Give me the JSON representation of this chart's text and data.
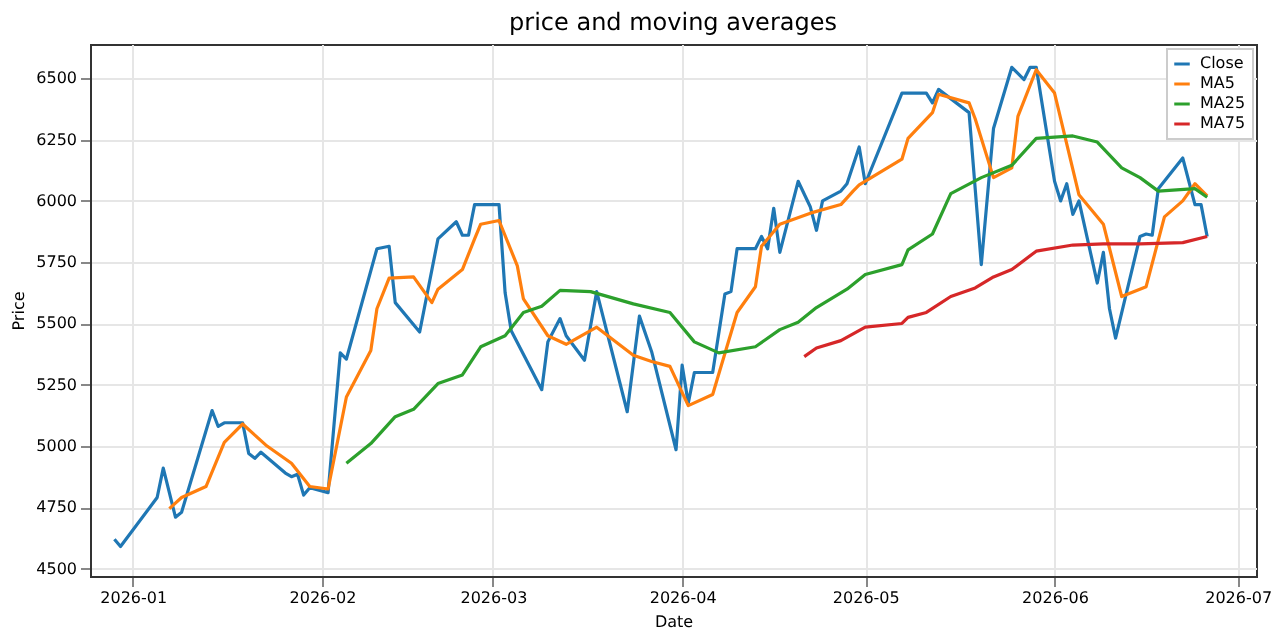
{
  "chart_data": {
    "type": "line",
    "title": "price and moving averages",
    "xlabel": "Date",
    "ylabel": "Price",
    "xlim": [
      "2025-12-25",
      "2026-07-04"
    ],
    "xticks": [
      "2026-01",
      "2026-02",
      "2026-03",
      "2026-04",
      "2026-05",
      "2026-06",
      "2026-07"
    ],
    "ylim": [
      4470,
      6640
    ],
    "yticks": [
      4500,
      4750,
      5000,
      5250,
      5500,
      5750,
      6000,
      6250,
      6500
    ],
    "grid": true,
    "legend": "top right",
    "line_style": "solid",
    "marker": "none",
    "series": [
      {
        "name": "Close",
        "color": "#1f77b4",
        "x": [
          "2025-12-29",
          "2025-12-30",
          "2026-01-05",
          "2026-01-06",
          "2026-01-08",
          "2026-01-09",
          "2026-01-14",
          "2026-01-15",
          "2026-01-16",
          "2026-01-19",
          "2026-01-20",
          "2026-01-21",
          "2026-01-22",
          "2026-01-26",
          "2026-01-27",
          "2026-01-28",
          "2026-01-29",
          "2026-01-30",
          "2026-02-02",
          "2026-02-04",
          "2026-02-05",
          "2026-02-10",
          "2026-02-12",
          "2026-02-13",
          "2026-02-17",
          "2026-02-20",
          "2026-02-23",
          "2026-02-24",
          "2026-02-25",
          "2026-02-26",
          "2026-02-27",
          "2026-03-02",
          "2026-03-03",
          "2026-03-04",
          "2026-03-09",
          "2026-03-10",
          "2026-03-12",
          "2026-03-13",
          "2026-03-16",
          "2026-03-18",
          "2026-03-23",
          "2026-03-25",
          "2026-03-27",
          "2026-03-31",
          "2026-04-01",
          "2026-04-02",
          "2026-04-03",
          "2026-04-06",
          "2026-04-08",
          "2026-04-09",
          "2026-04-10",
          "2026-04-13",
          "2026-04-14",
          "2026-04-15",
          "2026-04-16",
          "2026-04-17",
          "2026-04-20",
          "2026-04-22",
          "2026-04-23",
          "2026-04-24",
          "2026-04-27",
          "2026-04-28",
          "2026-04-30",
          "2026-05-01",
          "2026-05-07",
          "2026-05-11",
          "2026-05-12",
          "2026-05-13",
          "2026-05-18",
          "2026-05-20",
          "2026-05-22",
          "2026-05-25",
          "2026-05-27",
          "2026-05-28",
          "2026-05-29",
          "2026-06-01",
          "2026-06-02",
          "2026-06-03",
          "2026-06-04",
          "2026-06-05",
          "2026-06-08",
          "2026-06-09",
          "2026-06-10",
          "2026-06-11",
          "2026-06-15",
          "2026-06-16",
          "2026-06-17",
          "2026-06-18",
          "2026-06-22",
          "2026-06-24",
          "2026-06-25",
          "2026-06-26"
        ],
        "values": [
          4620,
          4590,
          4790,
          4910,
          4710,
          4730,
          5145,
          5080,
          5095,
          5095,
          4970,
          4950,
          4975,
          4890,
          4875,
          4885,
          4800,
          4830,
          4810,
          5380,
          5355,
          5805,
          5815,
          5585,
          5465,
          5845,
          5915,
          5860,
          5860,
          5985,
          5985,
          5985,
          5625,
          5470,
          5230,
          5425,
          5520,
          5450,
          5350,
          5630,
          5140,
          5530,
          5385,
          4985,
          5330,
          5175,
          5300,
          5300,
          5620,
          5630,
          5805,
          5805,
          5855,
          5805,
          5970,
          5790,
          6080,
          5975,
          5880,
          6000,
          6040,
          6070,
          6220,
          6070,
          6440,
          6440,
          6400,
          6455,
          6360,
          5740,
          6295,
          6545,
          6495,
          6545,
          6545,
          6080,
          6000,
          6070,
          5945,
          6000,
          5665,
          5790,
          5560,
          5440,
          5855,
          5865,
          5860,
          6050,
          6175,
          5985,
          5985,
          5855
        ]
      },
      {
        "name": "MA5",
        "color": "#ff7f0e",
        "x": [
          "2026-01-07",
          "2026-01-09",
          "2026-01-13",
          "2026-01-16",
          "2026-01-19",
          "2026-01-23",
          "2026-01-27",
          "2026-01-30",
          "2026-02-02",
          "2026-02-05",
          "2026-02-09",
          "2026-02-10",
          "2026-02-12",
          "2026-02-16",
          "2026-02-19",
          "2026-02-20",
          "2026-02-24",
          "2026-02-26",
          "2026-02-27",
          "2026-03-02",
          "2026-03-05",
          "2026-03-06",
          "2026-03-10",
          "2026-03-13",
          "2026-03-18",
          "2026-03-24",
          "2026-03-27",
          "2026-03-30",
          "2026-04-02",
          "2026-04-06",
          "2026-04-10",
          "2026-04-13",
          "2026-04-14",
          "2026-04-17",
          "2026-04-22",
          "2026-04-27",
          "2026-04-29",
          "2026-04-30",
          "2026-05-07",
          "2026-05-08",
          "2026-05-12",
          "2026-05-13",
          "2026-05-18",
          "2026-05-19",
          "2026-05-22",
          "2026-05-25",
          "2026-05-26",
          "2026-05-29",
          "2026-06-01",
          "2026-06-05",
          "2026-06-09",
          "2026-06-12",
          "2026-06-16",
          "2026-06-19",
          "2026-06-22",
          "2026-06-24",
          "2026-06-26"
        ],
        "values": [
          4745,
          4790,
          4835,
          5015,
          5090,
          5000,
          4930,
          4835,
          4825,
          5200,
          5390,
          5560,
          5685,
          5690,
          5585,
          5640,
          5720,
          5845,
          5905,
          5920,
          5735,
          5600,
          5450,
          5415,
          5485,
          5370,
          5345,
          5325,
          5165,
          5210,
          5545,
          5650,
          5815,
          5905,
          5950,
          5985,
          6040,
          6065,
          6170,
          6255,
          6360,
          6435,
          6400,
          6335,
          6095,
          6135,
          6345,
          6535,
          6440,
          6025,
          5905,
          5610,
          5650,
          5935,
          6000,
          6070,
          6020
        ]
      },
      {
        "name": "MA25",
        "color": "#2ca02c",
        "x": [
          "2026-02-05",
          "2026-02-09",
          "2026-02-13",
          "2026-02-16",
          "2026-02-20",
          "2026-02-24",
          "2026-02-27",
          "2026-03-03",
          "2026-03-06",
          "2026-03-09",
          "2026-03-12",
          "2026-03-17",
          "2026-03-24",
          "2026-03-30",
          "2026-04-03",
          "2026-04-07",
          "2026-04-13",
          "2026-04-17",
          "2026-04-20",
          "2026-04-23",
          "2026-04-28",
          "2026-05-01",
          "2026-05-07",
          "2026-05-08",
          "2026-05-12",
          "2026-05-15",
          "2026-05-20",
          "2026-05-25",
          "2026-05-29",
          "2026-06-04",
          "2026-06-08",
          "2026-06-12",
          "2026-06-15",
          "2026-06-18",
          "2026-06-24",
          "2026-06-26"
        ],
        "values": [
          4930,
          5010,
          5120,
          5150,
          5255,
          5290,
          5405,
          5450,
          5545,
          5570,
          5635,
          5630,
          5580,
          5545,
          5425,
          5380,
          5405,
          5475,
          5505,
          5565,
          5640,
          5700,
          5740,
          5800,
          5865,
          6030,
          6095,
          6145,
          6255,
          6265,
          6240,
          6135,
          6095,
          6040,
          6050,
          6015
        ]
      },
      {
        "name": "MA75",
        "color": "#d62728",
        "x": [
          "2026-04-21",
          "2026-04-23",
          "2026-04-27",
          "2026-05-01",
          "2026-05-07",
          "2026-05-08",
          "2026-05-11",
          "2026-05-15",
          "2026-05-19",
          "2026-05-22",
          "2026-05-25",
          "2026-05-29",
          "2026-06-04",
          "2026-06-09",
          "2026-06-15",
          "2026-06-22",
          "2026-06-26"
        ],
        "values": [
          5365,
          5400,
          5430,
          5485,
          5500,
          5525,
          5545,
          5610,
          5645,
          5690,
          5720,
          5795,
          5820,
          5825,
          5825,
          5830,
          5855
        ]
      }
    ]
  }
}
